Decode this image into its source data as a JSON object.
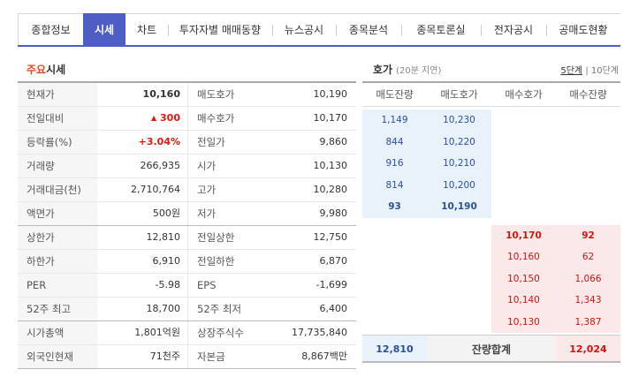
{
  "tabs": [
    "종합정보",
    "시세",
    "차트",
    "투자자별 매매동향",
    "뉴스공시",
    "종목분석",
    "종목토론실",
    "전자공시",
    "공매도현황"
  ],
  "active_tab": "시세",
  "main": {
    "title_accent": "주요",
    "title_rest": "시세",
    "rows": [
      {
        "l1": "현재가",
        "v1": "10,160",
        "l2": "매도호가",
        "v2": "10,190"
      },
      {
        "l1": "전일대비",
        "v1": "300",
        "l2": "매수호가",
        "v2": "10,170"
      },
      {
        "l1": "등락률(%)",
        "v1": "+3.04%",
        "l2": "전일가",
        "v2": "9,860"
      },
      {
        "l1": "거래량",
        "v1": "266,935",
        "l2": "시가",
        "v2": "10,130"
      },
      {
        "l1": "거래대금(천)",
        "v1": "2,710,764",
        "l2": "고가",
        "v2": "10,280"
      },
      {
        "l1": "액면가",
        "v1": "500원",
        "l2": "저가",
        "v2": "9,980"
      },
      {
        "l1": "상한가",
        "v1": "12,810",
        "l2": "전일상한",
        "v2": "12,750"
      },
      {
        "l1": "하한가",
        "v1": "6,910",
        "l2": "전일하한",
        "v2": "6,870"
      },
      {
        "l1": "PER",
        "v1": "-5.98",
        "l2": "EPS",
        "v2": "-1,699"
      },
      {
        "l1": "52주 최고",
        "v1": "18,700",
        "l2": "52주 최저",
        "v2": "6,400"
      },
      {
        "l1": "시가총액",
        "v1": "1,801억원",
        "l2": "상장주식수",
        "v2": "17,735,840"
      },
      {
        "l1": "외국인현재",
        "v1": "71천주",
        "l2": "자본금",
        "v2": "8,867백만"
      }
    ],
    "change_arrow": "▲"
  },
  "orderbook": {
    "title": "호가",
    "subtitle": "(20분 지연)",
    "depth_5": "5단계",
    "depth_sep": "|",
    "depth_10": "10단계",
    "headers": [
      "매도잔량",
      "매도호가",
      "매수호가",
      "매수잔량"
    ],
    "asks": [
      {
        "qty": "1,149",
        "price": "10,230"
      },
      {
        "qty": "844",
        "price": "10,220"
      },
      {
        "qty": "916",
        "price": "10,210"
      },
      {
        "qty": "814",
        "price": "10,200"
      },
      {
        "qty": "93",
        "price": "10,190"
      }
    ],
    "bids": [
      {
        "price": "10,170",
        "qty": "92"
      },
      {
        "price": "10,160",
        "qty": "62"
      },
      {
        "price": "10,150",
        "qty": "1,066"
      },
      {
        "price": "10,140",
        "qty": "1,343"
      },
      {
        "price": "10,130",
        "qty": "1,387"
      }
    ],
    "total_ask": "12,810",
    "total_label": "잔량합계",
    "total_bid": "12,024"
  }
}
